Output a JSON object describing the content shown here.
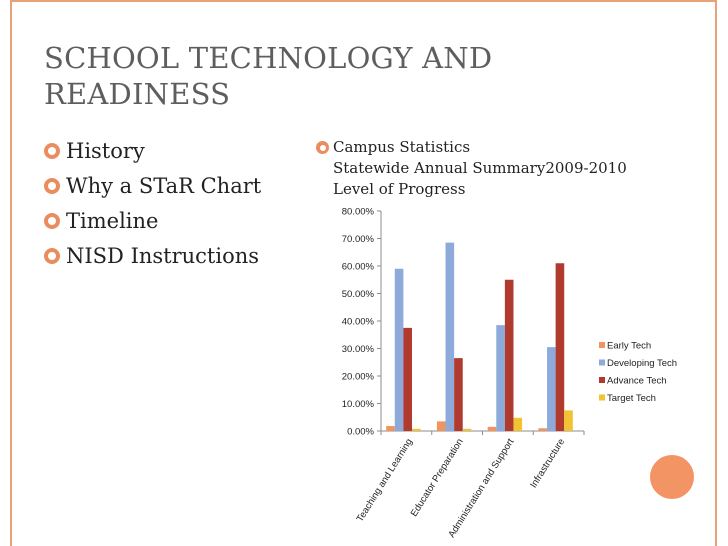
{
  "slide": {
    "title_line1": "SCHOOL TECHNOLOGY AND",
    "title_line2": "READINESS",
    "bullets": [
      "History",
      "Why a STaR Chart",
      "Timeline",
      "NISD Instructions"
    ],
    "right_heading": "Campus Statistics",
    "right_line2": "Statewide Annual Summary2009-2010",
    "right_line3": "Level of Progress"
  },
  "colors": {
    "accent": "#e98d5f",
    "frame": "#e8a27a",
    "series": [
      "#f0955f",
      "#8eaadb",
      "#b03a2e",
      "#f1c232"
    ]
  },
  "chart_data": {
    "type": "bar",
    "title": "",
    "xlabel": "",
    "ylabel": "",
    "categories": [
      "Teaching and Learning",
      "Educator Preparation",
      "Administration and Support",
      "Infrastructure"
    ],
    "series": [
      {
        "name": "Early Tech",
        "values": [
          1.8,
          3.5,
          1.5,
          1.0
        ]
      },
      {
        "name": "Developing Tech",
        "values": [
          59.0,
          68.5,
          38.5,
          30.5
        ]
      },
      {
        "name": "Advance Tech",
        "values": [
          37.5,
          26.5,
          55.0,
          61.0
        ]
      },
      {
        "name": "Target Tech",
        "values": [
          0.8,
          0.8,
          4.8,
          7.5
        ]
      }
    ],
    "yticks": [
      "0.00%",
      "10.00%",
      "20.00%",
      "30.00%",
      "40.00%",
      "50.00%",
      "60.00%",
      "70.00%",
      "80.00%"
    ],
    "ylim": [
      0,
      80
    ],
    "grid": false,
    "legend": "right"
  }
}
